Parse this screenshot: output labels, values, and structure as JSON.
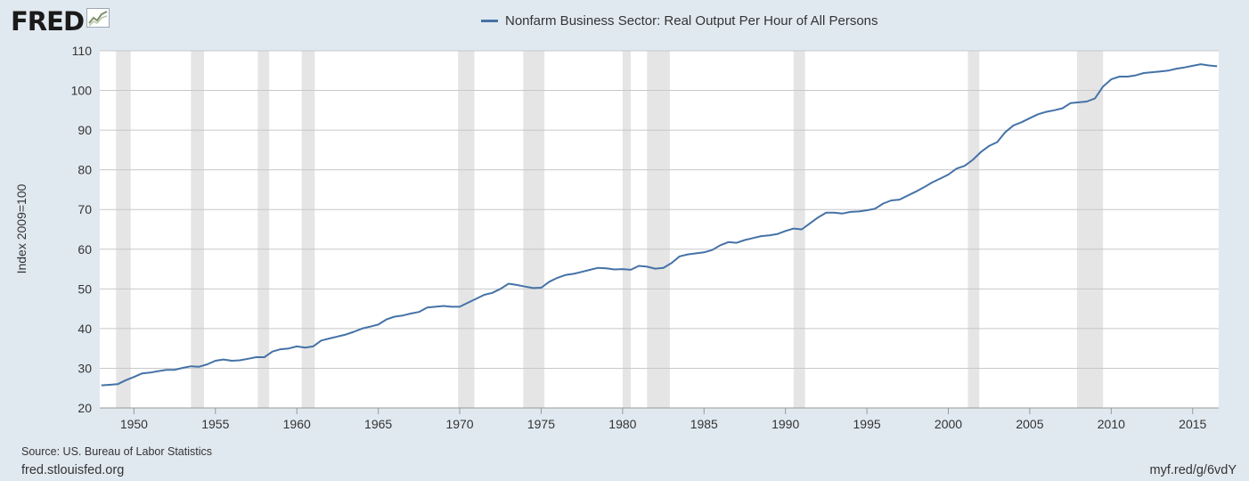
{
  "brand": {
    "name": "FRED",
    "icon": "fred-chart-icon"
  },
  "colors": {
    "background": "#e1e9f0",
    "plot_bg": "#ffffff",
    "series": "#4572a7",
    "recession": "#e5e5e5",
    "grid": "#c8c8c8"
  },
  "footer": {
    "source": "Source: US. Bureau of Labor Statistics",
    "site": "fred.stlouisfed.org",
    "link": "myf.red/g/6vdY"
  },
  "chart_data": {
    "type": "line",
    "title": "",
    "xlabel": "",
    "ylabel": "Index 2009=100",
    "xlim": [
      1947.9,
      2016.6
    ],
    "ylim": [
      20,
      110
    ],
    "grid": true,
    "legend": "top-center",
    "x_ticks": [
      1950,
      1955,
      1960,
      1965,
      1970,
      1975,
      1980,
      1985,
      1990,
      1995,
      2000,
      2005,
      2010,
      2015
    ],
    "y_ticks": [
      20,
      30,
      40,
      50,
      60,
      70,
      80,
      90,
      100,
      110
    ],
    "recessions": [
      [
        1948.9,
        1949.8
      ],
      [
        1953.5,
        1954.3
      ],
      [
        1957.6,
        1958.3
      ],
      [
        1960.3,
        1961.1
      ],
      [
        1969.9,
        1970.9
      ],
      [
        1973.9,
        1975.2
      ],
      [
        1980.0,
        1980.5
      ],
      [
        1981.5,
        1982.9
      ],
      [
        1990.5,
        1991.2
      ],
      [
        2001.2,
        2001.9
      ],
      [
        2007.9,
        2009.5
      ]
    ],
    "series": [
      {
        "name": "Nonfarm Business Sector: Real Output Per Hour of All Persons",
        "points": [
          [
            1948.0,
            25.7
          ],
          [
            1949.0,
            26.0
          ],
          [
            1949.5,
            27.0
          ],
          [
            1950.0,
            27.8
          ],
          [
            1950.5,
            28.7
          ],
          [
            1951.0,
            28.9
          ],
          [
            1951.5,
            29.3
          ],
          [
            1952.0,
            29.6
          ],
          [
            1952.5,
            29.6
          ],
          [
            1953.0,
            30.1
          ],
          [
            1953.5,
            30.5
          ],
          [
            1954.0,
            30.4
          ],
          [
            1954.5,
            31.0
          ],
          [
            1955.0,
            31.9
          ],
          [
            1955.5,
            32.2
          ],
          [
            1956.0,
            31.9
          ],
          [
            1956.5,
            32.0
          ],
          [
            1957.0,
            32.4
          ],
          [
            1957.5,
            32.8
          ],
          [
            1958.0,
            32.8
          ],
          [
            1958.5,
            34.2
          ],
          [
            1959.0,
            34.8
          ],
          [
            1959.5,
            35.0
          ],
          [
            1960.0,
            35.5
          ],
          [
            1960.5,
            35.2
          ],
          [
            1961.0,
            35.5
          ],
          [
            1961.5,
            37.0
          ],
          [
            1962.0,
            37.5
          ],
          [
            1962.5,
            38.0
          ],
          [
            1963.0,
            38.5
          ],
          [
            1963.5,
            39.2
          ],
          [
            1964.0,
            40.0
          ],
          [
            1964.5,
            40.5
          ],
          [
            1965.0,
            41.0
          ],
          [
            1965.5,
            42.3
          ],
          [
            1966.0,
            43.0
          ],
          [
            1966.5,
            43.3
          ],
          [
            1967.0,
            43.8
          ],
          [
            1967.5,
            44.2
          ],
          [
            1968.0,
            45.3
          ],
          [
            1968.5,
            45.5
          ],
          [
            1969.0,
            45.7
          ],
          [
            1969.5,
            45.5
          ],
          [
            1970.0,
            45.5
          ],
          [
            1970.5,
            46.5
          ],
          [
            1971.0,
            47.5
          ],
          [
            1971.5,
            48.5
          ],
          [
            1972.0,
            49.0
          ],
          [
            1972.5,
            50.0
          ],
          [
            1973.0,
            51.3
          ],
          [
            1973.5,
            51.0
          ],
          [
            1974.0,
            50.6
          ],
          [
            1974.5,
            50.2
          ],
          [
            1975.0,
            50.3
          ],
          [
            1975.5,
            51.8
          ],
          [
            1976.0,
            52.8
          ],
          [
            1976.5,
            53.5
          ],
          [
            1977.0,
            53.8
          ],
          [
            1977.5,
            54.3
          ],
          [
            1978.0,
            54.8
          ],
          [
            1978.5,
            55.3
          ],
          [
            1979.0,
            55.2
          ],
          [
            1979.5,
            54.9
          ],
          [
            1980.0,
            55.0
          ],
          [
            1980.5,
            54.8
          ],
          [
            1981.0,
            55.8
          ],
          [
            1981.5,
            55.6
          ],
          [
            1982.0,
            55.1
          ],
          [
            1982.5,
            55.3
          ],
          [
            1983.0,
            56.5
          ],
          [
            1983.5,
            58.2
          ],
          [
            1984.0,
            58.7
          ],
          [
            1985.0,
            59.2
          ],
          [
            1985.5,
            59.8
          ],
          [
            1986.0,
            61.0
          ],
          [
            1986.5,
            61.8
          ],
          [
            1987.0,
            61.6
          ],
          [
            1987.5,
            62.3
          ],
          [
            1988.0,
            62.8
          ],
          [
            1988.5,
            63.3
          ],
          [
            1989.0,
            63.5
          ],
          [
            1989.5,
            63.8
          ],
          [
            1990.0,
            64.6
          ],
          [
            1990.5,
            65.2
          ],
          [
            1991.0,
            65.0
          ],
          [
            1991.5,
            66.5
          ],
          [
            1992.0,
            68.0
          ],
          [
            1992.5,
            69.2
          ],
          [
            1993.0,
            69.2
          ],
          [
            1993.5,
            69.0
          ],
          [
            1994.0,
            69.4
          ],
          [
            1994.5,
            69.5
          ],
          [
            1995.0,
            69.8
          ],
          [
            1995.5,
            70.2
          ],
          [
            1996.0,
            71.5
          ],
          [
            1996.5,
            72.3
          ],
          [
            1997.0,
            72.5
          ],
          [
            1997.5,
            73.5
          ],
          [
            1998.0,
            74.5
          ],
          [
            1998.5,
            75.6
          ],
          [
            1999.0,
            76.8
          ],
          [
            1999.5,
            77.8
          ],
          [
            2000.0,
            78.8
          ],
          [
            2000.5,
            80.3
          ],
          [
            2001.0,
            81.0
          ],
          [
            2001.5,
            82.5
          ],
          [
            2002.0,
            84.5
          ],
          [
            2002.5,
            86.0
          ],
          [
            2003.0,
            87.0
          ],
          [
            2003.5,
            89.5
          ],
          [
            2004.0,
            91.2
          ],
          [
            2004.5,
            92.0
          ],
          [
            2005.0,
            93.0
          ],
          [
            2005.5,
            94.0
          ],
          [
            2006.0,
            94.6
          ],
          [
            2006.5,
            95.0
          ],
          [
            2007.0,
            95.5
          ],
          [
            2007.5,
            96.8
          ],
          [
            2008.0,
            97.0
          ],
          [
            2008.5,
            97.2
          ],
          [
            2009.0,
            98.0
          ],
          [
            2009.5,
            101.0
          ],
          [
            2010.0,
            102.8
          ],
          [
            2010.5,
            103.5
          ],
          [
            2011.0,
            103.5
          ],
          [
            2011.5,
            103.8
          ],
          [
            2012.0,
            104.4
          ],
          [
            2012.5,
            104.6
          ],
          [
            2013.0,
            104.8
          ],
          [
            2013.5,
            105.0
          ],
          [
            2014.0,
            105.5
          ],
          [
            2014.5,
            105.8
          ],
          [
            2015.0,
            106.2
          ],
          [
            2015.5,
            106.6
          ],
          [
            2016.0,
            106.3
          ],
          [
            2016.5,
            106.1
          ]
        ]
      }
    ]
  }
}
